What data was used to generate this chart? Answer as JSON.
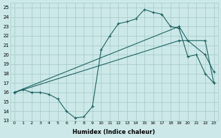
{
  "xlabel": "Humidex (Indice chaleur)",
  "xlim": [
    -0.5,
    23.5
  ],
  "ylim": [
    13,
    25.5
  ],
  "xticks": [
    0,
    1,
    2,
    3,
    4,
    5,
    6,
    7,
    8,
    9,
    10,
    11,
    12,
    13,
    14,
    15,
    16,
    17,
    18,
    19,
    20,
    21,
    22,
    23
  ],
  "yticks": [
    13,
    14,
    15,
    16,
    17,
    18,
    19,
    20,
    21,
    22,
    23,
    24,
    25
  ],
  "bg_color": "#cce8e8",
  "grid_color": "#aacccc",
  "line_color": "#1a6060",
  "curve1_x": [
    0,
    1,
    2,
    3,
    4,
    5,
    6,
    7,
    8,
    9,
    10,
    11,
    12,
    13,
    14,
    15,
    16,
    17,
    18,
    19,
    20,
    21,
    22,
    23
  ],
  "curve1_y": [
    16.0,
    16.3,
    16.0,
    16.0,
    15.8,
    15.3,
    14.0,
    13.3,
    13.4,
    14.5,
    20.5,
    22.0,
    23.3,
    23.5,
    23.8,
    24.8,
    24.5,
    24.3,
    23.0,
    22.8,
    19.8,
    20.0,
    18.0,
    17.0
  ],
  "curve2_x": [
    0,
    2,
    3,
    19,
    20,
    22,
    23
  ],
  "curve2_y": [
    16.0,
    16.3,
    16.0,
    23.0,
    21.5,
    20.0,
    18.2
  ],
  "curve3_x": [
    0,
    2,
    3,
    19,
    22,
    23
  ],
  "curve3_y": [
    16.0,
    16.3,
    16.0,
    21.5,
    21.5,
    17.0
  ]
}
